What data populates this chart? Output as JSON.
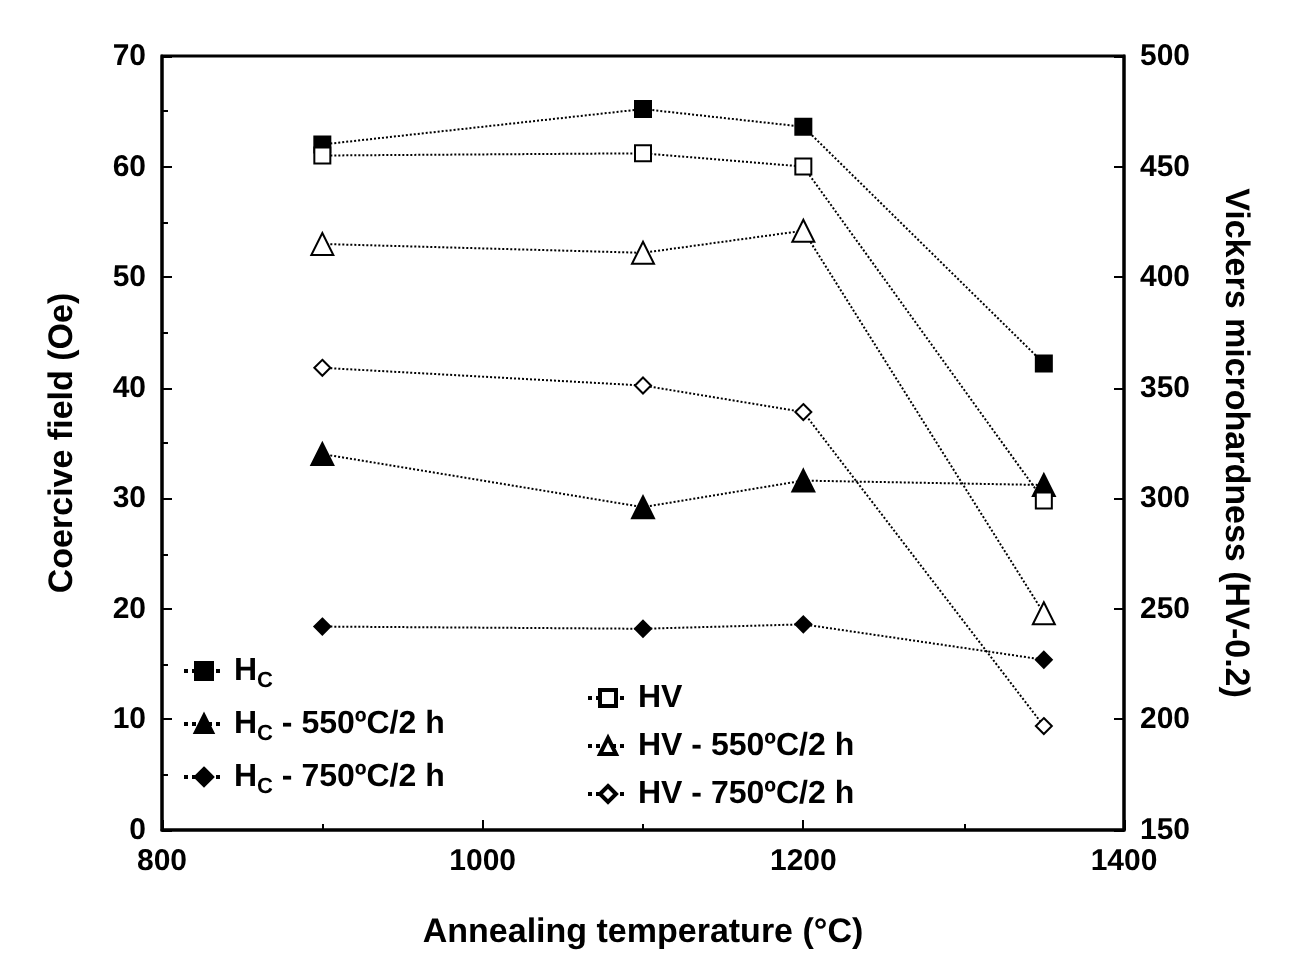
{
  "chart_data": {
    "type": "line",
    "xlabel": "Annealing temperature (°C)",
    "ylabel": "Coercive field (Oe)",
    "y2label": "Vickers microhardness (HV-0.2)",
    "x": [
      900,
      1100,
      1200,
      1350
    ],
    "xlim": [
      800,
      1400
    ],
    "xticks": [
      800,
      1000,
      1200,
      1400
    ],
    "ylim": [
      0,
      70
    ],
    "yticks": [
      0,
      10,
      20,
      30,
      40,
      50,
      60,
      70
    ],
    "y2lim": [
      150,
      500
    ],
    "y2ticks": [
      150,
      200,
      250,
      300,
      350,
      400,
      450,
      500
    ],
    "grid": false,
    "legend": "bottom left",
    "line_style": "dotted",
    "series": [
      {
        "name": "H$_{C}$",
        "color": "#000000",
        "marker": "square",
        "values": [
          62,
          65.2,
          63.6,
          42.2
        ]
      },
      {
        "name": "H$_{C}$ - 550ºC/2 h",
        "color": "#000000",
        "marker": "triangle",
        "values": [
          34,
          29.2,
          31.6,
          31.2
        ]
      },
      {
        "name": "H$_{C}$ - 750ºC/2 h",
        "color": "#000000",
        "marker": "diamond",
        "values": [
          18.4,
          18.2,
          18.6,
          15.4
        ]
      },
      {
        "name": "HV",
        "color": "#000000",
        "marker": "square",
        "axis": "y2",
        "values": [
          455,
          456,
          450,
          299
        ]
      },
      {
        "name": "HV - 550ºC/2 h",
        "color": "#000000",
        "marker": "triangle",
        "axis": "y2",
        "values": [
          415,
          411,
          421,
          248
        ]
      },
      {
        "name": "HV - 750ºC/2 h",
        "color": "#000000",
        "marker": "diamond",
        "axis": "y2",
        "values": [
          359,
          351,
          339,
          197
        ]
      }
    ]
  }
}
